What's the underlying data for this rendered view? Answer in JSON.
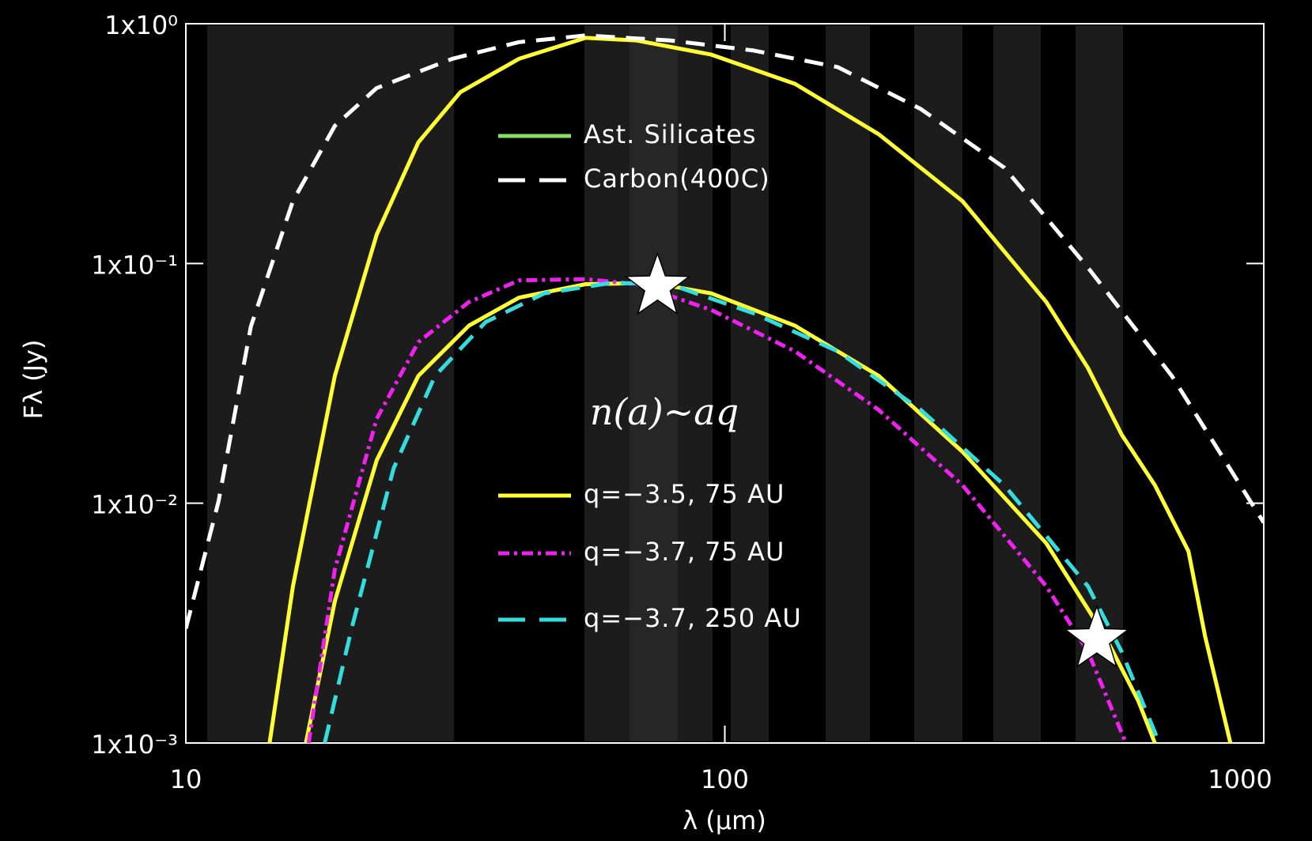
{
  "chart_data": {
    "type": "line",
    "xlabel": "λ (μm)",
    "ylabel": "Fλ (Jy)",
    "xscale": "log",
    "yscale": "log",
    "xlim": [
      10,
      1000
    ],
    "ylim": [
      0.001,
      1
    ],
    "xticks": [
      10,
      100,
      1000
    ],
    "yticks": [
      {
        "value": 1,
        "label": "1x10⁰"
      },
      {
        "value": 0.1,
        "label": "1x10⁻¹"
      },
      {
        "value": 0.01,
        "label": "1x10⁻²"
      },
      {
        "value": 0.001,
        "label": "1x10⁻³"
      }
    ],
    "series": [
      {
        "name": "Ast. Silicates",
        "color": "#ffff33",
        "legend_color": "#88dd66",
        "dash": "solid",
        "x": [
          14.3,
          15.8,
          18.9,
          22.6,
          27.0,
          32.3,
          41.5,
          55.2,
          68.4,
          94.4,
          135,
          193,
          276,
          395,
          472,
          545,
          628,
          725,
          778,
          867
        ],
        "values": [
          0.001,
          0.0045,
          0.034,
          0.132,
          0.32,
          0.518,
          0.714,
          0.873,
          0.852,
          0.743,
          0.561,
          0.346,
          0.182,
          0.069,
          0.0366,
          0.0193,
          0.0119,
          0.0063,
          0.0028,
          0.001
        ]
      },
      {
        "name": "Carbon(400C)",
        "color": "#ffffff",
        "dash": "dashed",
        "x": [
          10,
          11.5,
          13.2,
          15.8,
          18.9,
          22.6,
          31.2,
          41.5,
          55.2,
          79,
          113,
          162,
          231,
          330,
          472,
          675,
          1000
        ],
        "values": [
          0.003,
          0.0102,
          0.0546,
          0.182,
          0.375,
          0.539,
          0.714,
          0.838,
          0.894,
          0.852,
          0.773,
          0.659,
          0.441,
          0.251,
          0.096,
          0.034,
          0.0083
        ]
      },
      {
        "name": "q=−3.5, 75 AU",
        "color": "#ffff33",
        "dash": "solid",
        "x": [
          16.7,
          18.9,
          22.6,
          27.0,
          33.5,
          41.5,
          55.2,
          73.5,
          94.4,
          135,
          193,
          276,
          395,
          507,
          585,
          628
        ],
        "values": [
          0.001,
          0.0039,
          0.0151,
          0.034,
          0.055,
          0.072,
          0.082,
          0.083,
          0.075,
          0.055,
          0.034,
          0.0164,
          0.0068,
          0.0028,
          0.0015,
          0.001
        ]
      },
      {
        "name": "q=−3.7, 75 AU",
        "color": "#ee22ee",
        "dash": "dashdot",
        "x": [
          16.9,
          18.9,
          22.6,
          27.0,
          33.5,
          41.5,
          55.2,
          68.4,
          94.4,
          135,
          193,
          276,
          395,
          472,
          555
        ],
        "values": [
          0.001,
          0.0053,
          0.0225,
          0.047,
          0.069,
          0.085,
          0.086,
          0.082,
          0.064,
          0.043,
          0.0245,
          0.0119,
          0.0045,
          0.0024,
          0.001
        ]
      },
      {
        "name": "q=−3.7, 250 AU",
        "color": "#33dddd",
        "dash": "dashed",
        "x": [
          18.1,
          20.3,
          24.3,
          29.0,
          36.0,
          46.2,
          61.5,
          79,
          113,
          162,
          231,
          330,
          472,
          545,
          640
        ],
        "values": [
          0.001,
          0.003,
          0.014,
          0.034,
          0.057,
          0.075,
          0.083,
          0.082,
          0.062,
          0.043,
          0.0245,
          0.0119,
          0.0045,
          0.0024,
          0.001
        ]
      }
    ],
    "markers": {
      "x": [
        75,
        490
      ],
      "y": [
        0.08,
        0.0027
      ]
    },
    "annotation": "n(a)~aq"
  }
}
